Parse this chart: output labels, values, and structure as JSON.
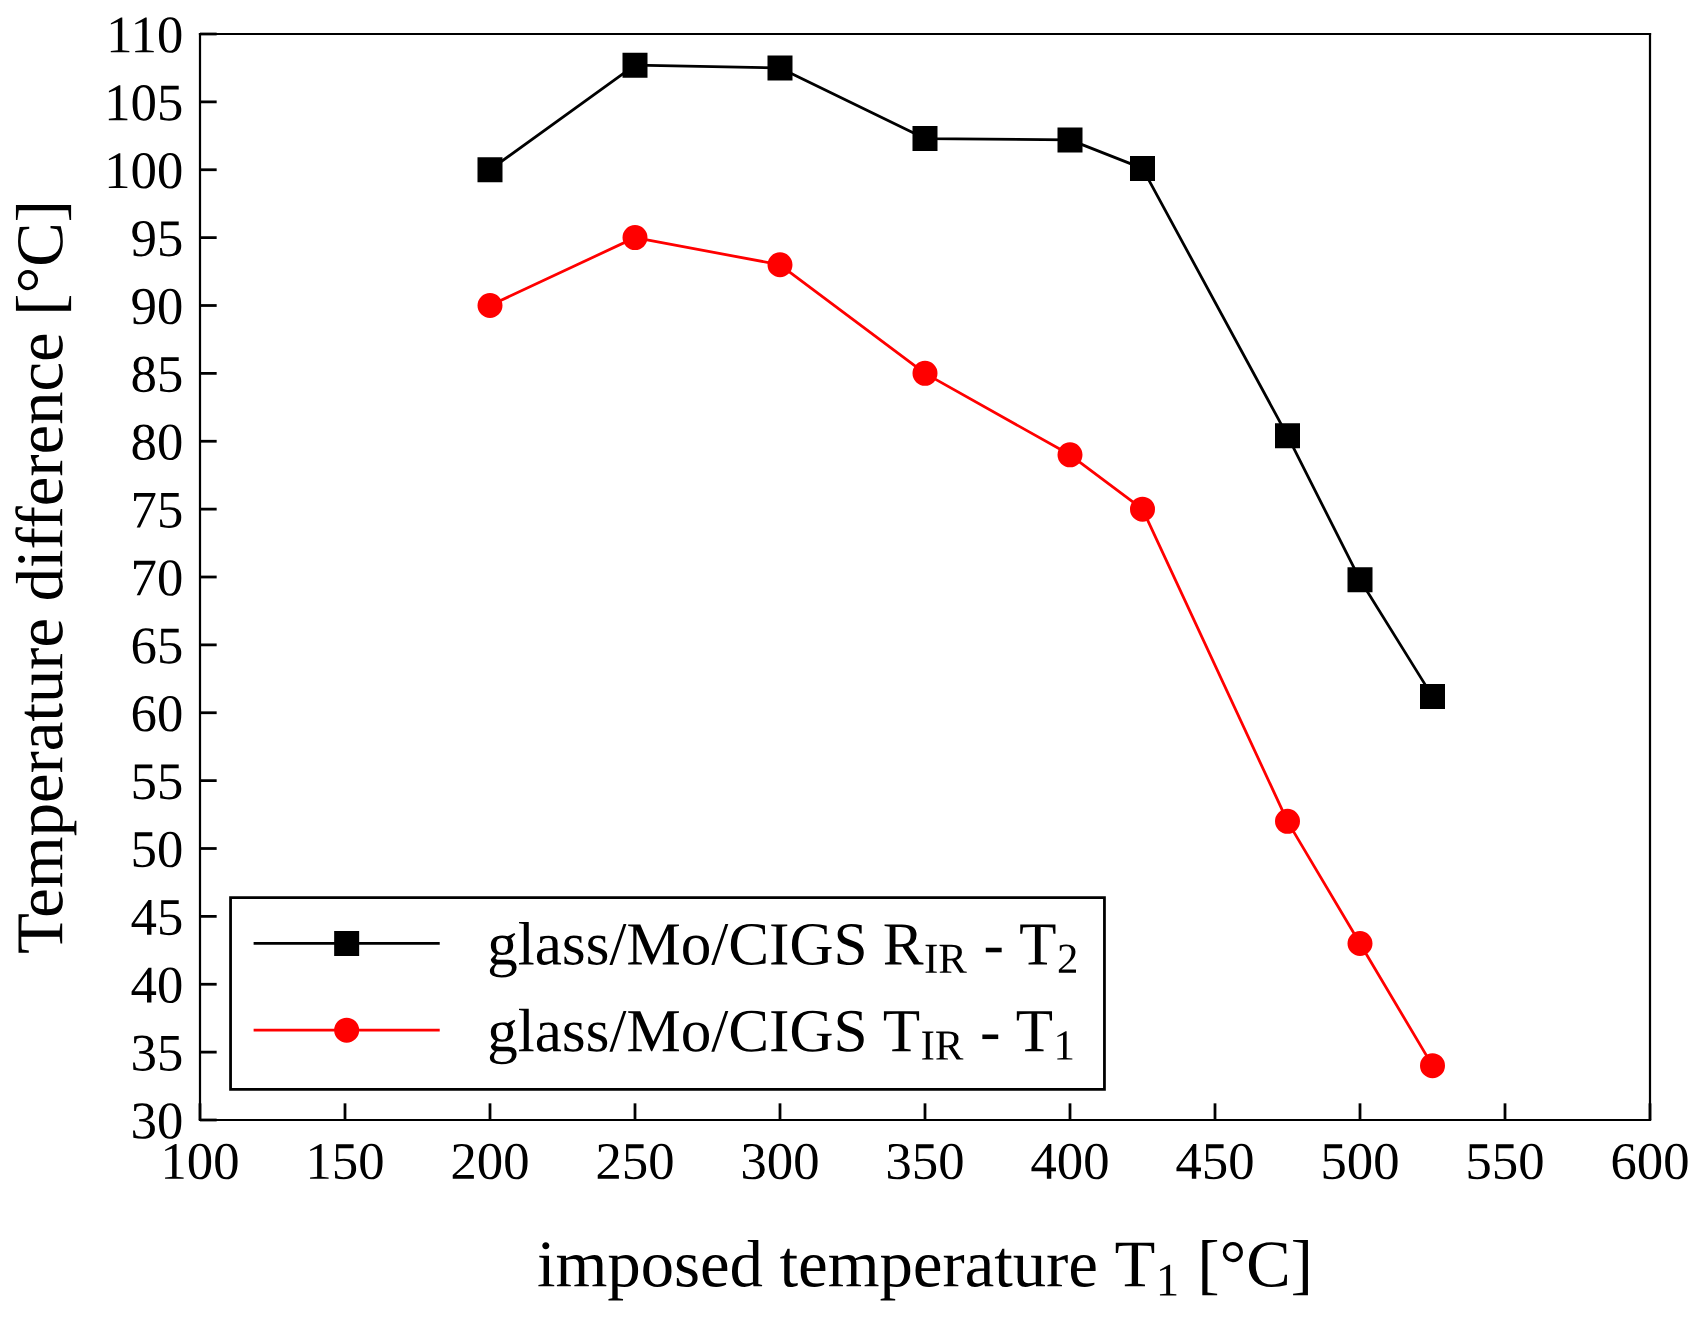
{
  "chart_data": {
    "type": "line",
    "xlabel": "imposed temperature T$_{1}$ [°C]",
    "ylabel": "Temperature difference [°C]",
    "xlim": [
      100,
      600
    ],
    "xticks": [
      100,
      150,
      200,
      250,
      300,
      350,
      400,
      450,
      500,
      550,
      600
    ],
    "ylim": [
      30,
      110
    ],
    "yticks": [
      30,
      35,
      40,
      45,
      50,
      55,
      60,
      65,
      70,
      75,
      80,
      85,
      90,
      95,
      100,
      105,
      110
    ],
    "x": [
      200,
      250,
      300,
      350,
      400,
      425,
      475,
      500,
      525
    ],
    "series": [
      {
        "name": "glass/Mo/CIGS R$_{IR}$ - T$_{2}$",
        "color": "#000000",
        "marker": "square",
        "values": [
          100,
          107.7,
          107.5,
          102.3,
          102.2,
          100.1,
          80.4,
          69.8,
          61.2
        ]
      },
      {
        "name": "glass/Mo/CIGS T$_{IR}$ - T$_{1}$",
        "color": "#ff0000",
        "marker": "circle",
        "values": [
          90,
          95,
          93,
          85,
          79,
          75,
          52,
          43,
          34
        ]
      }
    ],
    "legend": "bottom left",
    "grid": false,
    "line_style": "solid"
  }
}
